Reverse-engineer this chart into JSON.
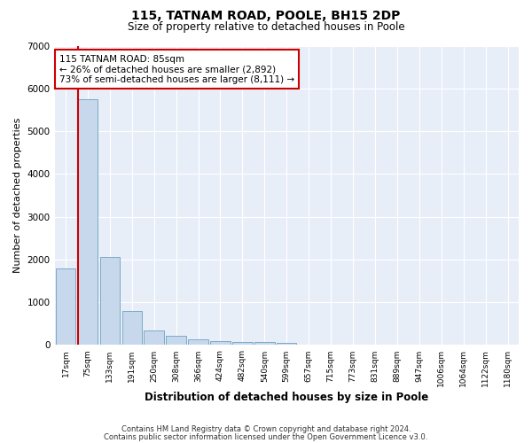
{
  "title": "115, TATNAM ROAD, POOLE, BH15 2DP",
  "subtitle": "Size of property relative to detached houses in Poole",
  "xlabel": "Distribution of detached houses by size in Poole",
  "ylabel": "Number of detached properties",
  "bar_labels": [
    "17sqm",
    "75sqm",
    "133sqm",
    "191sqm",
    "250sqm",
    "308sqm",
    "366sqm",
    "424sqm",
    "482sqm",
    "540sqm",
    "599sqm",
    "657sqm",
    "715sqm",
    "773sqm",
    "831sqm",
    "889sqm",
    "947sqm",
    "1006sqm",
    "1064sqm",
    "1122sqm",
    "1180sqm"
  ],
  "bar_values": [
    1800,
    5750,
    2050,
    800,
    340,
    220,
    130,
    100,
    75,
    65,
    60,
    0,
    0,
    0,
    0,
    0,
    0,
    0,
    0,
    0,
    0
  ],
  "bar_color": "#c8d8ec",
  "bar_edge_color": "#7aaac8",
  "vline_bar_index": 1,
  "annotation_text": "115 TATNAM ROAD: 85sqm\n← 26% of detached houses are smaller (2,892)\n73% of semi-detached houses are larger (8,111) →",
  "annotation_box_color": "#ffffff",
  "annotation_box_edge_color": "#cc0000",
  "vline_color": "#cc0000",
  "ylim": [
    0,
    7000
  ],
  "yticks": [
    0,
    1000,
    2000,
    3000,
    4000,
    5000,
    6000,
    7000
  ],
  "bg_color": "#e8eef8",
  "grid_color": "#ffffff",
  "footer1": "Contains HM Land Registry data © Crown copyright and database right 2024.",
  "footer2": "Contains public sector information licensed under the Open Government Licence v3.0."
}
